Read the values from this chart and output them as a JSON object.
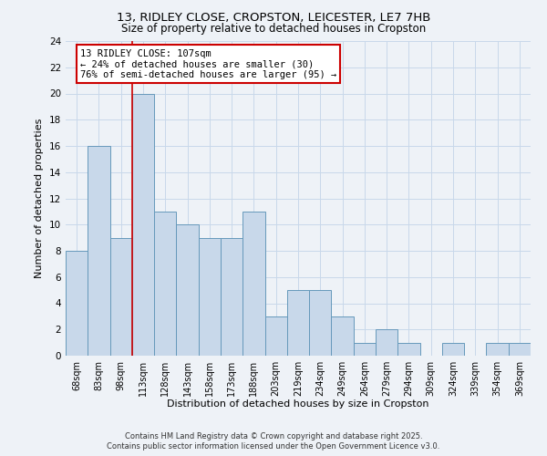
{
  "title_line1": "13, RIDLEY CLOSE, CROPSTON, LEICESTER, LE7 7HB",
  "title_line2": "Size of property relative to detached houses in Cropston",
  "xlabel": "Distribution of detached houses by size in Cropston",
  "ylabel": "Number of detached properties",
  "footer_line1": "Contains HM Land Registry data © Crown copyright and database right 2025.",
  "footer_line2": "Contains public sector information licensed under the Open Government Licence v3.0.",
  "categories": [
    "68sqm",
    "83sqm",
    "98sqm",
    "113sqm",
    "128sqm",
    "143sqm",
    "158sqm",
    "173sqm",
    "188sqm",
    "203sqm",
    "219sqm",
    "234sqm",
    "249sqm",
    "264sqm",
    "279sqm",
    "294sqm",
    "309sqm",
    "324sqm",
    "339sqm",
    "354sqm",
    "369sqm"
  ],
  "values": [
    8,
    16,
    9,
    20,
    11,
    10,
    9,
    9,
    11,
    3,
    5,
    5,
    3,
    1,
    2,
    1,
    0,
    1,
    0,
    1,
    1
  ],
  "bar_color": "#c8d8ea",
  "bar_edge_color": "#6699bb",
  "grid_color": "#c8d8ea",
  "background_color": "#eef2f7",
  "annotation_text_line1": "13 RIDLEY CLOSE: 107sqm",
  "annotation_text_line2": "← 24% of detached houses are smaller (30)",
  "annotation_text_line3": "76% of semi-detached houses are larger (95) →",
  "annotation_box_color": "#ffffff",
  "annotation_border_color": "#cc0000",
  "ylim": [
    0,
    24
  ],
  "yticks": [
    0,
    2,
    4,
    6,
    8,
    10,
    12,
    14,
    16,
    18,
    20,
    22,
    24
  ]
}
